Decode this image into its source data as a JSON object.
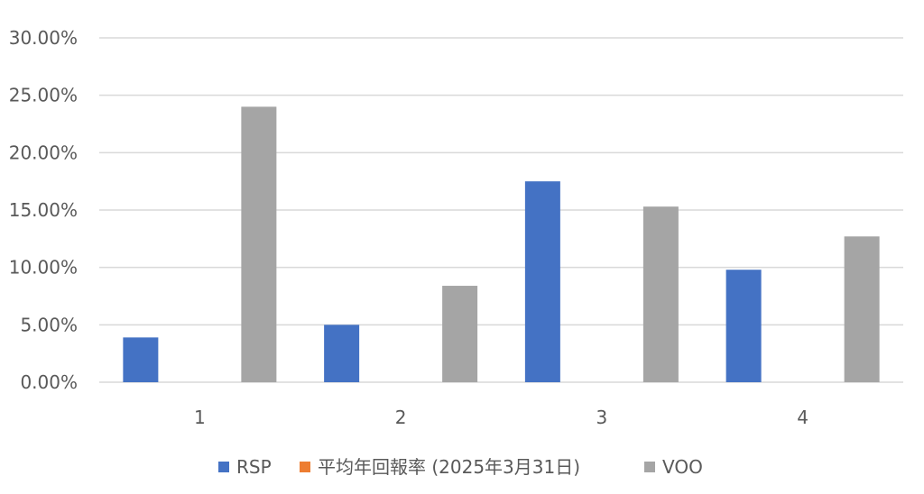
{
  "chart_data": {
    "type": "bar",
    "categories": [
      "1",
      "2",
      "3",
      "4"
    ],
    "series": [
      {
        "name": "RSP",
        "color": "#4472C4",
        "values": [
          3.9,
          5.0,
          17.5,
          9.8
        ]
      },
      {
        "name": "平均年回報率 (2025年3月31日)",
        "color": "#ED7D31",
        "values": [
          0,
          0,
          0,
          0
        ]
      },
      {
        "name": "VOO",
        "color": "#A5A5A5",
        "values": [
          24.0,
          8.4,
          15.3,
          12.7
        ]
      }
    ],
    "y_ticks": [
      "0.00%",
      "5.00%",
      "10.00%",
      "15.00%",
      "20.00%",
      "25.00%",
      "30.00%"
    ],
    "ylim": [
      0,
      30
    ],
    "y_step": 5,
    "grid": true,
    "legend_position": "bottom",
    "title": "",
    "xlabel": "",
    "ylabel": ""
  }
}
